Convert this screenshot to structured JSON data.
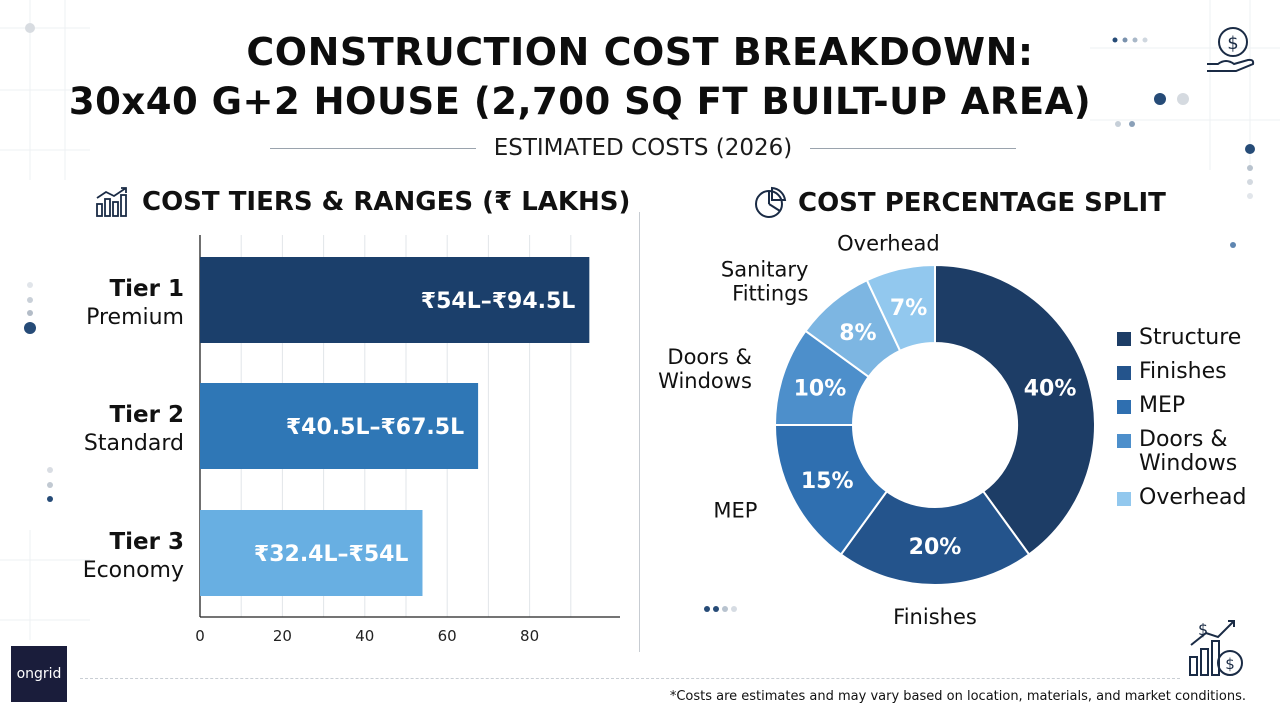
{
  "header": {
    "title_line1": "CONSTRUCTION COST BREAKDOWN:",
    "title_line2": "30x40 G+2 HOUSE (2,700 SQ FT BUILT-UP AREA)",
    "subtitle": "ESTIMATED COSTS (2026)"
  },
  "left_section": {
    "heading": "COST TIERS & RANGES (₹ LAKHS)",
    "icon": "bar-chart-icon"
  },
  "right_section": {
    "heading": "COST PERCENTAGE SPLIT",
    "icon": "pie-chart-icon"
  },
  "colors": {
    "dark_navy": "#1b3f6b",
    "mid_blue": "#2f77b6",
    "light_blue": "#68afe2",
    "structure": "#1d3d66",
    "finishes": "#24548c",
    "mep": "#2f6fb0",
    "doors_windows": "#4d8fcb",
    "sanitary": "#7db6e2",
    "overhead": "#92c8ee"
  },
  "chart_data": [
    {
      "type": "bar",
      "orientation": "horizontal",
      "title": "COST TIERS & RANGES (₹ LAKHS)",
      "categories": [
        "Tier 1",
        "Tier 2",
        "Tier 3"
      ],
      "category_sublabels": [
        "Premium",
        "Standard",
        "Economy"
      ],
      "values": [
        94.5,
        67.5,
        54
      ],
      "range_low": [
        54,
        40.5,
        32.4
      ],
      "data_labels": [
        "₹54L–₹94.5L",
        "₹40.5L–₹67.5L",
        "₹32.4L–₹54L"
      ],
      "xticks": [
        0,
        20,
        40,
        60,
        80
      ],
      "xlim": [
        0,
        100
      ],
      "grid": true
    },
    {
      "type": "pie",
      "donut": true,
      "title": "COST PERCENTAGE SPLIT",
      "labels": [
        "Structure",
        "Finishes",
        "MEP",
        "Doors & Windows",
        "Sanitary Fittings",
        "Overhead"
      ],
      "values": [
        40,
        20,
        15,
        10,
        8,
        7
      ],
      "slice_labels": [
        "40%",
        "20%",
        "15%",
        "10%",
        "8%",
        "7%"
      ],
      "outside_labels": [
        "",
        "Finishes",
        "MEP",
        "Doors & Windows",
        "Sanitary Fittings",
        "Overhead"
      ],
      "legend": [
        "Structure",
        "Finishes",
        "MEP",
        "Doors & Windows",
        "Overhead"
      ],
      "legend_position": "right"
    }
  ],
  "footer": {
    "note": "*Costs are estimates and may vary based on location, materials, and market conditions.",
    "logo": "ongrid"
  }
}
